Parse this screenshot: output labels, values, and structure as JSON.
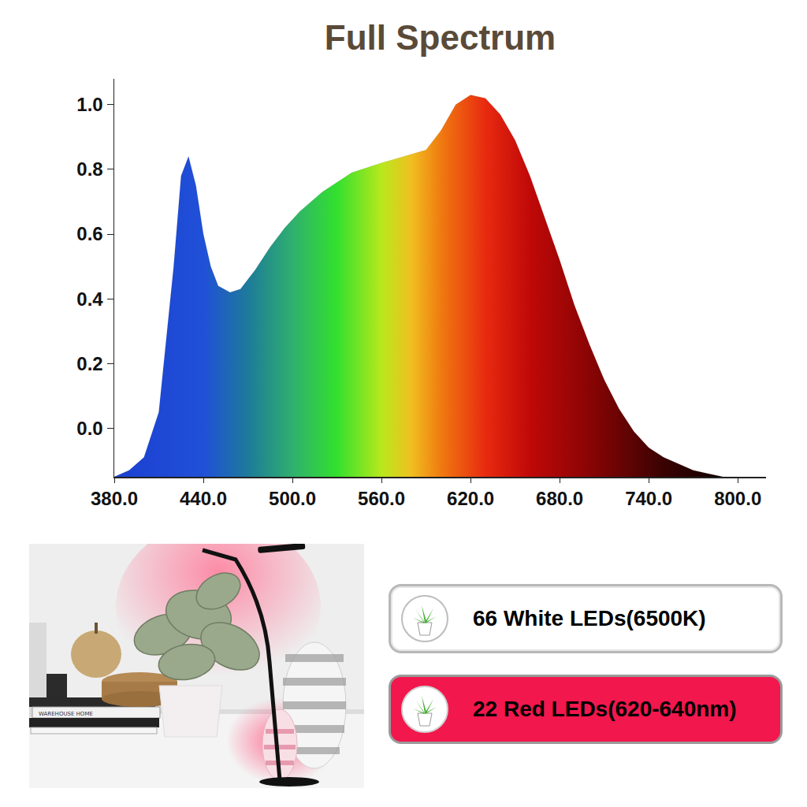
{
  "chart_data": {
    "type": "area",
    "title": "Full Spectrum",
    "x": [
      380,
      390,
      400,
      410,
      420,
      425,
      430,
      435,
      440,
      445,
      450,
      458,
      465,
      475,
      485,
      495,
      505,
      520,
      540,
      560,
      575,
      590,
      600,
      610,
      620,
      630,
      640,
      650,
      660,
      670,
      680,
      690,
      700,
      710,
      720,
      730,
      740,
      750,
      760,
      770,
      780,
      790,
      800
    ],
    "values": [
      -0.15,
      -0.13,
      -0.09,
      0.05,
      0.5,
      0.78,
      0.84,
      0.75,
      0.6,
      0.5,
      0.44,
      0.42,
      0.43,
      0.49,
      0.56,
      0.62,
      0.67,
      0.73,
      0.79,
      0.82,
      0.84,
      0.86,
      0.92,
      1.0,
      1.03,
      1.02,
      0.97,
      0.89,
      0.78,
      0.65,
      0.52,
      0.38,
      0.26,
      0.15,
      0.06,
      -0.01,
      -0.06,
      -0.09,
      -0.11,
      -0.13,
      -0.14,
      -0.15,
      -0.15
    ],
    "xlim": [
      380,
      819
    ],
    "ylim": [
      -0.15,
      1.08
    ],
    "xticks": [
      {
        "value": 380,
        "label": "380.0"
      },
      {
        "value": 440,
        "label": "440.0"
      },
      {
        "value": 500,
        "label": "500.0"
      },
      {
        "value": 560,
        "label": "560.0"
      },
      {
        "value": 620,
        "label": "620.0"
      },
      {
        "value": 680,
        "label": "680.0"
      },
      {
        "value": 740,
        "label": "740.0"
      },
      {
        "value": 800,
        "label": "800.0"
      }
    ],
    "yticks": [
      {
        "value": 0,
        "label": "0.0"
      },
      {
        "value": 0.2,
        "label": "0.2"
      },
      {
        "value": 0.4,
        "label": "0.4"
      },
      {
        "value": 0.6,
        "label": "0.6"
      },
      {
        "value": 0.8,
        "label": "0.8"
      },
      {
        "value": 1.0,
        "label": "1.0"
      }
    ],
    "grid": false
  },
  "photo": {
    "book_text": "WAREHOUSE HOME"
  },
  "led_boxes": [
    {
      "text": "66 White LEDs(6500K)"
    },
    {
      "text": "22 Red LEDs(620-640nm)"
    }
  ]
}
